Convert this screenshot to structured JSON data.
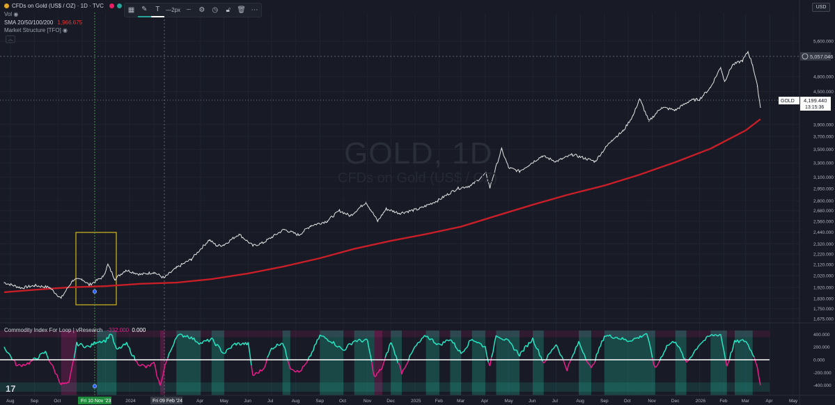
{
  "header": {
    "symbol_line": "CFDs on Gold (US$ / OZ) · 1D · TVC",
    "vol_label": "Vol",
    "sma_label": "SMA 20/50/100/200",
    "sma_value": "1,966.675",
    "market_structure_label": "Market Structure [TFO]",
    "currency_badge": "USD"
  },
  "toolbar": {
    "width_label": "2px"
  },
  "watermark": {
    "title": "GOLD, 1D",
    "subtitle": "CFDs on Gold (US$ / OZ)"
  },
  "indicator": {
    "label": "Commodity Index For Loop | vResearch",
    "value_1": "-332.000",
    "value_2": "0.000"
  },
  "price_labels": {
    "crosshair_price": "5,057.046",
    "last_symbol": "GOLD",
    "last_price": "4,199.440",
    "countdown": "13:15:36"
  },
  "time_labels": {
    "crosshair_1": "Fri 10 Nov '23",
    "crosshair_2": "Fri 09 Feb '24"
  },
  "colors": {
    "background": "#181b25",
    "price_line": "#e6e6e6",
    "sma": "#c81e28",
    "oscillator_up": "#26e8c4",
    "oscillator_down": "#e91e8c",
    "zero_line": "#ffffff",
    "box": "#d4b81e",
    "crosshair_green": "#4caf50"
  },
  "chart_data": [
    {
      "type": "line",
      "title": "GOLD, 1D",
      "subtitle": "CFDs on Gold (US$ / OZ)",
      "y_ticks": [
        "5,600.000",
        "5,200.000",
        "4,800.000",
        "4,500.000",
        "4,300.000",
        "3,900.000",
        "3,700.000",
        "3,500.000",
        "3,300.000",
        "3,100.000",
        "2,950.000",
        "2,800.000",
        "2,680.000",
        "2,560.000",
        "2,440.000",
        "2,320.000",
        "2,220.000",
        "2,120.000",
        "2,020.000",
        "1,920.000",
        "1,830.000",
        "1,750.000",
        "1,675.000"
      ],
      "x_ticks": [
        "Aug",
        "Sep",
        "Oct",
        "Nov",
        "Dec",
        "2024",
        "Feb",
        "Mar",
        "Apr",
        "May",
        "Jun",
        "Jul",
        "Aug",
        "Sep",
        "Oct",
        "Nov",
        "Dec",
        "2025",
        "Feb",
        "Mar",
        "Apr",
        "May",
        "Jun",
        "Jul",
        "Aug",
        "Sep",
        "Oct",
        "Nov",
        "Dec",
        "2026",
        "Feb",
        "Mar",
        "Apr",
        "May"
      ],
      "y_scale": "log",
      "ylim": [
        1640,
        5900
      ],
      "series": [
        {
          "x": [
            "2023-07-24",
            "2023-08-15",
            "2023-09-01",
            "2023-09-20",
            "2023-10-05",
            "2023-10-20",
            "2023-11-01",
            "2023-11-10",
            "2023-11-28",
            "2023-12-04",
            "2023-12-13",
            "2023-12-27",
            "2024-01-15",
            "2024-02-01",
            "2024-02-14",
            "2024-03-01",
            "2024-03-20",
            "2024-04-12",
            "2024-04-22",
            "2024-05-01",
            "2024-05-20",
            "2024-06-07",
            "2024-06-20",
            "2024-07-17",
            "2024-08-05",
            "2024-08-20",
            "2024-09-10",
            "2024-09-26",
            "2024-10-10",
            "2024-10-30",
            "2024-11-14",
            "2024-11-25",
            "2024-12-12",
            "2025-01-06",
            "2025-01-30",
            "2025-02-24",
            "2025-03-14",
            "2025-04-02",
            "2025-04-07",
            "2025-04-22",
            "2025-05-01",
            "2025-05-15",
            "2025-06-13",
            "2025-07-01",
            "2025-07-22",
            "2025-08-20",
            "2025-09-10",
            "2025-09-25",
            "2025-10-08",
            "2025-10-16",
            "2025-10-28",
            "2025-11-13",
            "2025-12-01",
            "2025-12-20",
            "2026-01-01",
            "2026-01-15",
            "2026-01-28",
            "2026-02-02",
            "2026-02-12",
            "2026-02-25",
            "2026-03-04",
            "2026-03-10",
            "2026-03-16",
            "2026-03-20"
          ],
          "y": [
            1960,
            1915,
            1935,
            1920,
            1830,
            1980,
            1990,
            1940,
            2010,
            2120,
            1990,
            2070,
            2030,
            2050,
            2000,
            2090,
            2170,
            2360,
            2300,
            2310,
            2420,
            2300,
            2330,
            2470,
            2410,
            2510,
            2560,
            2680,
            2620,
            2780,
            2560,
            2700,
            2650,
            2700,
            2800,
            2950,
            2990,
            3150,
            2960,
            3500,
            3230,
            3180,
            3400,
            3320,
            3420,
            3320,
            3640,
            3790,
            4060,
            4360,
            3950,
            4200,
            4150,
            4330,
            4350,
            4580,
            5000,
            4700,
            5050,
            5150,
            5350,
            5050,
            4600,
            4199.44
          ]
        },
        {
          "name": "SMA 200",
          "x": [
            "2023-07-24",
            "2023-09-01",
            "2023-10-15",
            "2023-12-01",
            "2024-01-15",
            "2024-03-01",
            "2024-04-15",
            "2024-06-01",
            "2024-07-15",
            "2024-09-01",
            "2024-10-15",
            "2024-12-01",
            "2025-01-15",
            "2025-03-01",
            "2025-04-15",
            "2025-06-01",
            "2025-07-15",
            "2025-09-01",
            "2025-10-15",
            "2025-12-01",
            "2026-01-15",
            "2026-03-01",
            "2026-03-20"
          ],
          "y": [
            1880,
            1900,
            1920,
            1930,
            1950,
            1960,
            1990,
            2040,
            2100,
            2180,
            2270,
            2350,
            2420,
            2500,
            2620,
            2750,
            2870,
            2990,
            3130,
            3310,
            3510,
            3800,
            3990
          ]
        }
      ]
    },
    {
      "type": "line",
      "title": "Commodity Index For Loop | vResearch",
      "y_ticks": [
        "400.000",
        "200.000",
        "0.000",
        "-200.000",
        "-400.000"
      ],
      "ylim": [
        -460,
        460
      ],
      "series": [
        {
          "x": [
            "2023-07-24",
            "2023-08-10",
            "2023-08-25",
            "2023-09-15",
            "2023-10-05",
            "2023-10-15",
            "2023-10-25",
            "2023-11-10",
            "2023-11-20",
            "2023-12-01",
            "2023-12-08",
            "2023-12-15",
            "2023-12-28",
            "2024-01-10",
            "2024-01-22",
            "2024-02-01",
            "2024-02-09",
            "2024-02-15",
            "2024-03-01",
            "2024-03-15",
            "2024-04-01",
            "2024-04-15",
            "2024-05-01",
            "2024-05-15",
            "2024-06-01",
            "2024-06-07",
            "2024-06-20",
            "2024-07-01",
            "2024-07-15",
            "2024-07-25",
            "2024-08-05",
            "2024-08-15",
            "2024-09-01",
            "2024-09-15",
            "2024-10-01",
            "2024-10-15",
            "2024-11-01",
            "2024-11-10",
            "2024-11-20",
            "2024-12-01",
            "2024-12-15",
            "2025-01-01",
            "2025-01-15",
            "2025-02-01",
            "2025-02-15",
            "2025-03-01",
            "2025-03-15",
            "2025-04-01",
            "2025-04-07",
            "2025-04-15",
            "2025-05-01",
            "2025-05-15",
            "2025-06-01",
            "2025-06-15",
            "2025-07-01",
            "2025-07-15",
            "2025-07-30",
            "2025-08-15",
            "2025-09-01",
            "2025-09-15",
            "2025-10-01",
            "2025-10-15",
            "2025-10-25",
            "2025-11-05",
            "2025-11-20",
            "2025-12-01",
            "2025-12-15",
            "2026-01-01",
            "2026-01-15",
            "2026-01-28",
            "2026-02-05",
            "2026-02-15",
            "2026-03-01",
            "2026-03-10",
            "2026-03-16",
            "2026-03-20"
          ],
          "y": [
            200,
            -100,
            -50,
            120,
            -380,
            -380,
            250,
            200,
            290,
            300,
            420,
            150,
            250,
            -40,
            -120,
            -60,
            -420,
            -100,
            380,
            380,
            260,
            320,
            100,
            250,
            250,
            -250,
            -150,
            180,
            280,
            -120,
            -200,
            -60,
            380,
            300,
            150,
            300,
            300,
            -280,
            -120,
            280,
            -200,
            200,
            380,
            230,
            330,
            100,
            330,
            200,
            -120,
            400,
            280,
            80,
            330,
            -50,
            250,
            -150,
            280,
            -150,
            380,
            360,
            300,
            350,
            420,
            -150,
            220,
            300,
            -50,
            250,
            380,
            400,
            -100,
            280,
            300,
            100,
            -100,
            -400
          ]
        }
      ]
    }
  ]
}
